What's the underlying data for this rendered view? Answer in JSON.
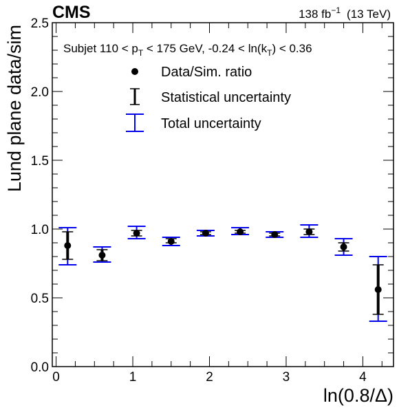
{
  "header": {
    "experiment": "CMS",
    "lumi": "138 fb",
    "lumi_sup": "−1",
    "energy": "(13 TeV)"
  },
  "selection": {
    "prefix": "Subjet 110 < p",
    "pt_sub": "T",
    "mid": " < 175 GeV, -0.24 < ln(k",
    "kt_sub": "T",
    "suffix": ") < 0.36"
  },
  "legend": {
    "ratio": "Data/Sim. ratio",
    "stat": "Statistical uncertainty",
    "total": "Total uncertainty"
  },
  "colors": {
    "points": "#000000",
    "stat": "#000000",
    "total": "#0000ee"
  },
  "chart_data": {
    "type": "scatter",
    "xlabel": "ln(0.8/Δ)",
    "ylabel": "Lund plane data/sim",
    "xlim": [
      -0.05,
      4.4
    ],
    "ylim": [
      0.0,
      2.5
    ],
    "xticks": [
      "0",
      "1",
      "2",
      "3",
      "4"
    ],
    "yticks": [
      "0.0",
      "0.5",
      "1.0",
      "1.5",
      "2.0",
      "2.5"
    ],
    "series": [
      {
        "name": "Data/Sim. ratio",
        "x": [
          0.15,
          0.6,
          1.05,
          1.5,
          1.95,
          2.4,
          2.85,
          3.3,
          3.75,
          4.2
        ],
        "y": [
          0.88,
          0.81,
          0.97,
          0.91,
          0.97,
          0.98,
          0.96,
          0.98,
          0.87,
          0.56
        ],
        "stat_lo": [
          0.78,
          0.77,
          0.95,
          0.9,
          0.96,
          0.97,
          0.95,
          0.96,
          0.84,
          0.38
        ],
        "stat_hi": [
          0.98,
          0.85,
          0.99,
          0.93,
          0.98,
          0.99,
          0.97,
          1.0,
          0.9,
          0.74
        ],
        "tot_lo": [
          0.74,
          0.76,
          0.93,
          0.88,
          0.95,
          0.96,
          0.94,
          0.94,
          0.81,
          0.33
        ],
        "tot_hi": [
          1.01,
          0.87,
          1.02,
          0.94,
          0.99,
          1.01,
          0.98,
          1.03,
          0.93,
          0.8
        ]
      }
    ]
  }
}
